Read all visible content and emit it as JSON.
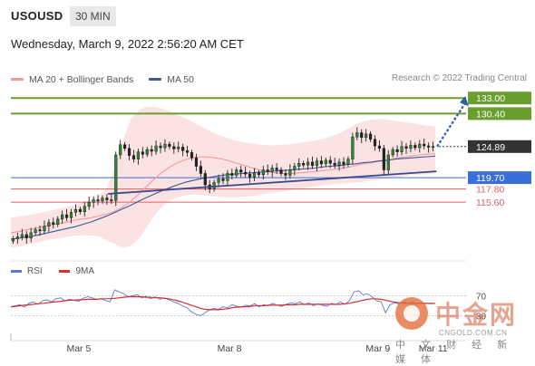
{
  "header": {
    "symbol": "USOUSD",
    "timeframe": "30 MIN",
    "datetime": "Wednesday, March 9, 2022 2:56:20 AM CET"
  },
  "legend": {
    "items": [
      {
        "label": "MA 20 + Bollinger Bands",
        "color": "#f19a9a"
      },
      {
        "label": "MA 50",
        "color": "#3b5998"
      }
    ],
    "credit": "Research © 2022 Trading Central"
  },
  "rsi_legend": {
    "items": [
      {
        "label": "RSI",
        "color": "#5b7bd5"
      },
      {
        "label": "9MA",
        "color": "#d62f2f"
      }
    ]
  },
  "watermark": {
    "name": "中金网",
    "url": "CNGOLD.COM.CN",
    "sub": "中 文 财 经 新 媒 体"
  },
  "chart_data": [
    {
      "type": "candlestick",
      "title": "USOUSD",
      "x_ticks": [
        "Mar 5",
        "Mar 8",
        "Mar 9",
        "Mar 11"
      ],
      "ylim": [
        107,
        135
      ],
      "price_levels": [
        {
          "label": "133.00",
          "value": 133.0,
          "color": "#6a9e2e",
          "style": "resistance"
        },
        {
          "label": "130.40",
          "value": 130.4,
          "color": "#6a9e2e",
          "style": "resistance"
        },
        {
          "label": "124.89",
          "value": 124.89,
          "color": "#333333",
          "style": "current"
        },
        {
          "label": "119.70",
          "value": 119.7,
          "color": "#3a6fd8",
          "style": "pivot"
        },
        {
          "label": "117.80",
          "value": 117.8,
          "color": "#e06060",
          "style": "support"
        },
        {
          "label": "115.60",
          "value": 115.6,
          "color": "#e06060",
          "style": "support"
        }
      ],
      "series": [
        {
          "name": "Price",
          "kind": "candles",
          "closes": [
            109.5,
            109.8,
            110.2,
            109.6,
            110.5,
            111.0,
            110.8,
            111.6,
            112.2,
            111.9,
            112.8,
            113.5,
            113.0,
            113.9,
            114.4,
            114.0,
            114.9,
            115.6,
            116.0,
            115.8,
            116.3,
            116.0,
            115.9,
            123.5,
            125.2,
            124.6,
            123.4,
            122.8,
            124.0,
            123.6,
            124.4,
            124.1,
            125.0,
            124.7,
            125.3,
            124.9,
            124.5,
            124.8,
            124.2,
            123.9,
            123.0,
            121.6,
            120.4,
            118.5,
            117.8,
            118.9,
            119.5,
            119.2,
            120.4,
            120.1,
            121.0,
            120.6,
            120.3,
            119.8,
            120.5,
            120.2,
            121.0,
            120.7,
            121.3,
            121.0,
            120.4,
            120.1,
            121.0,
            121.6,
            122.1,
            121.8,
            122.3,
            121.7,
            122.5,
            122.0,
            122.6,
            122.1,
            121.8,
            122.3,
            121.9,
            122.8,
            126.5,
            127.2,
            126.4,
            127.0,
            126.1,
            125.0,
            124.6,
            121.0,
            123.5,
            124.4,
            124.0,
            124.9,
            124.6,
            125.1,
            124.7,
            125.3,
            125.0,
            124.8,
            124.89
          ]
        },
        {
          "name": "MA 20",
          "kind": "line",
          "values": [
            110.5,
            110.7,
            111.0,
            111.2,
            111.5,
            111.8,
            112.0,
            112.3,
            112.6,
            112.8,
            113.0,
            113.3,
            113.6,
            114.1,
            114.8,
            115.8,
            117.0,
            118.3,
            119.6,
            120.7,
            121.6,
            122.3,
            122.8,
            123.1,
            123.2,
            123.1,
            122.9,
            122.6,
            122.2,
            121.8,
            121.4,
            121.0,
            120.7,
            120.5,
            120.4,
            120.4,
            120.5,
            120.6,
            120.7,
            120.9,
            121.0,
            121.2,
            121.4,
            121.7,
            122.0,
            122.2,
            122.4,
            122.6,
            122.9,
            123.1,
            123.3,
            123.5,
            123.6,
            123.7
          ]
        },
        {
          "name": "MA 50",
          "kind": "line",
          "values": [
            109.4,
            109.6,
            109.8,
            110.0,
            110.3,
            110.6,
            110.9,
            111.2,
            111.5,
            111.9,
            112.3,
            112.8,
            113.3,
            113.9,
            114.5,
            115.1,
            115.8,
            116.4,
            117.0,
            117.6,
            118.1,
            118.6,
            119.0,
            119.3,
            119.6,
            119.8,
            120.0,
            120.2,
            120.3,
            120.4,
            120.5,
            120.6,
            120.7,
            120.8,
            120.9,
            121.0,
            121.1,
            121.2,
            121.3,
            121.5,
            121.6,
            121.7,
            121.9,
            122.0,
            122.2,
            122.3,
            122.5,
            122.6,
            122.8,
            122.9,
            123.0,
            123.1,
            123.2,
            123.3
          ]
        },
        {
          "name": "Bollinger Upper",
          "kind": "band",
          "values": [
            113.0,
            113.2,
            113.4,
            113.6,
            113.9,
            114.2,
            114.5,
            114.8,
            115.2,
            115.6,
            116.0,
            116.7,
            118.0,
            121.5,
            126.0,
            129.5,
            131.0,
            131.6,
            131.5,
            131.2,
            130.7,
            130.1,
            129.5,
            128.8,
            128.1,
            127.4,
            126.8,
            126.3,
            125.9,
            125.6,
            125.4,
            125.2,
            125.1,
            125.1,
            125.2,
            125.3,
            125.5,
            125.7,
            125.9,
            126.2,
            126.6,
            127.1,
            127.8,
            128.6,
            129.1,
            129.4,
            129.5,
            129.4,
            129.2,
            129.0,
            128.8,
            128.6,
            128.4,
            128.2
          ]
        },
        {
          "name": "Bollinger Lower",
          "kind": "band",
          "values": [
            108.0,
            108.2,
            108.5,
            108.8,
            109.1,
            109.4,
            109.5,
            109.8,
            110.0,
            110.1,
            110.0,
            109.9,
            109.2,
            108.6,
            108.0,
            108.3,
            109.5,
            111.5,
            113.5,
            115.0,
            116.0,
            116.5,
            116.8,
            116.9,
            116.8,
            116.6,
            116.5,
            116.4,
            116.4,
            116.5,
            116.6,
            116.8,
            117.0,
            117.2,
            117.4,
            117.6,
            117.8,
            118.0,
            118.2,
            118.4,
            118.6,
            118.7,
            118.8,
            118.9,
            119.0,
            119.2,
            119.4,
            119.6,
            119.8,
            120.0,
            120.1,
            120.2,
            120.3,
            120.4
          ]
        }
      ],
      "annotations": [
        {
          "kind": "trendline",
          "from": [
            0.4,
            117.3
          ],
          "to": [
            0.8,
            120.6
          ]
        },
        {
          "kind": "arrow",
          "from": [
            0.82,
            124.89
          ],
          "to": [
            0.88,
            133.0
          ]
        }
      ]
    },
    {
      "type": "line",
      "title": "RSI",
      "ylim": [
        0,
        100
      ],
      "levels": [
        {
          "label": "70",
          "value": 70
        },
        {
          "label": "30",
          "value": 30
        }
      ],
      "series": [
        {
          "name": "RSI",
          "color": "#5b7bd5",
          "values": [
            48,
            50,
            52,
            47,
            55,
            58,
            53,
            60,
            62,
            58,
            64,
            66,
            60,
            63,
            61,
            59,
            65,
            68,
            66,
            63,
            64,
            60,
            58,
            82,
            78,
            74,
            68,
            70,
            72,
            66,
            69,
            64,
            68,
            63,
            66,
            62,
            58,
            55,
            50,
            46,
            38,
            33,
            30,
            36,
            42,
            45,
            43,
            48,
            46,
            52,
            49,
            47,
            51,
            50,
            54,
            48,
            52,
            50,
            55,
            51,
            49,
            53,
            56,
            54,
            58,
            52,
            56,
            50,
            54,
            51,
            49,
            55,
            52,
            58,
            53,
            60,
            78,
            80,
            72,
            74,
            68,
            60,
            58,
            36,
            52,
            56,
            54,
            58,
            55,
            57,
            54,
            56,
            55,
            54,
            55
          ]
        },
        {
          "name": "9MA",
          "color": "#d62f2f",
          "values": [
            48,
            49,
            50,
            51,
            52,
            53,
            54,
            55,
            56,
            57,
            58,
            59,
            60,
            61,
            61,
            62,
            62,
            63,
            63,
            63,
            64,
            64,
            64,
            65,
            66,
            67,
            68,
            68,
            68,
            68,
            67,
            67,
            66,
            66,
            65,
            64,
            62,
            60,
            57,
            54,
            51,
            48,
            45,
            43,
            42,
            42,
            42,
            43,
            44,
            46,
            47,
            48,
            48,
            49,
            50,
            50,
            50,
            51,
            51,
            51,
            51,
            52,
            52,
            52,
            53,
            53,
            53,
            53,
            53,
            53,
            53,
            53,
            53,
            53,
            54,
            55,
            57,
            59,
            61,
            63,
            64,
            64,
            63,
            61,
            59,
            57,
            56,
            55,
            55,
            55,
            55,
            55,
            55,
            55,
            55
          ]
        }
      ]
    }
  ]
}
